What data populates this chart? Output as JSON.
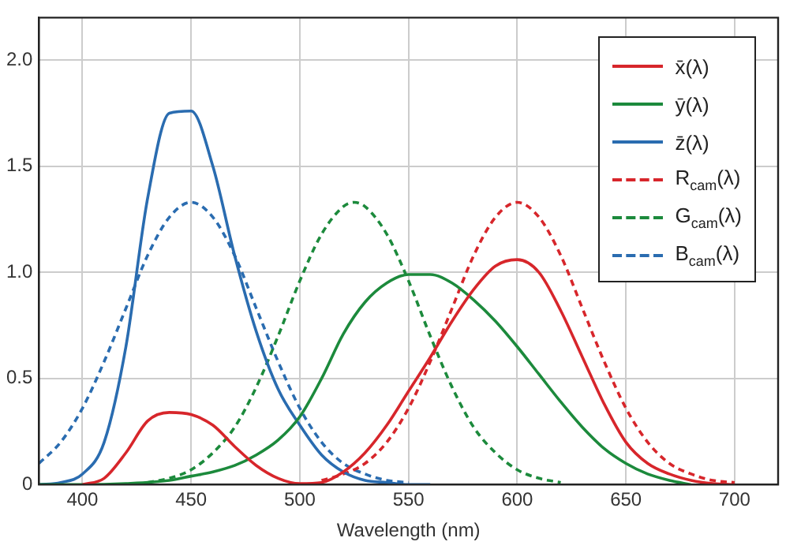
{
  "chart_data": {
    "type": "line",
    "xlabel": "Wavelength (nm)",
    "xlim": [
      380,
      720
    ],
    "xticks": [
      400,
      450,
      500,
      550,
      600,
      650,
      700
    ],
    "ylim": [
      0,
      2.2
    ],
    "yticks": [
      {
        "value": 0,
        "label": "0"
      },
      {
        "value": 0.5,
        "label": "0.5"
      },
      {
        "value": 1,
        "label": "1.0"
      },
      {
        "value": 1.5,
        "label": "1.5"
      },
      {
        "value": 2,
        "label": "2.0"
      }
    ],
    "grid": true,
    "legend": "top right",
    "marker": "none",
    "series": [
      {
        "name": "x̄(λ)",
        "color": "#d7262b",
        "line_style": "solid",
        "x": [
          400,
          410,
          420,
          430,
          440,
          450,
          460,
          470,
          480,
          490,
          500,
          510,
          520,
          530,
          540,
          550,
          560,
          570,
          580,
          590,
          600,
          610,
          620,
          630,
          640,
          650,
          660,
          670,
          680,
          690,
          700
        ],
        "values": [
          0,
          0.03,
          0.15,
          0.3,
          0.34,
          0.33,
          0.28,
          0.18,
          0.09,
          0.03,
          0.005,
          0.01,
          0.06,
          0.15,
          0.28,
          0.44,
          0.6,
          0.77,
          0.92,
          1.03,
          1.06,
          1.0,
          0.82,
          0.6,
          0.38,
          0.2,
          0.1,
          0.05,
          0.02,
          0.005,
          0
        ]
      },
      {
        "name": "ȳ(λ)",
        "color": "#1c8a3c",
        "line_style": "solid",
        "x": [
          380,
          400,
          420,
          440,
          450,
          460,
          470,
          480,
          490,
          500,
          510,
          520,
          530,
          540,
          550,
          560,
          570,
          580,
          590,
          600,
          610,
          620,
          630,
          640,
          650,
          660,
          670,
          680
        ],
        "values": [
          0,
          0,
          0.005,
          0.02,
          0.04,
          0.06,
          0.09,
          0.14,
          0.21,
          0.32,
          0.5,
          0.71,
          0.86,
          0.95,
          0.99,
          0.99,
          0.95,
          0.87,
          0.77,
          0.65,
          0.52,
          0.39,
          0.27,
          0.17,
          0.1,
          0.05,
          0.02,
          0
        ]
      },
      {
        "name": "z̄(λ)",
        "color": "#2a6cb0",
        "line_style": "solid",
        "x": [
          380,
          390,
          400,
          410,
          420,
          430,
          440,
          450,
          460,
          470,
          480,
          490,
          500,
          510,
          520,
          530,
          540,
          550,
          560
        ],
        "values": [
          0,
          0.01,
          0.05,
          0.2,
          0.65,
          1.35,
          1.75,
          1.76,
          1.5,
          1.08,
          0.72,
          0.45,
          0.28,
          0.14,
          0.06,
          0.02,
          0.01,
          0,
          0
        ]
      },
      {
        "name": "R$_{cam}$(λ)",
        "color": "#d7262b",
        "line_style": "dashed",
        "x": [
          510,
          520,
          530,
          540,
          550,
          560,
          570,
          580,
          590,
          600,
          610,
          620,
          630,
          640,
          650,
          660,
          670,
          680,
          690,
          700
        ],
        "values": [
          0.02,
          0.05,
          0.1,
          0.2,
          0.36,
          0.58,
          0.83,
          1.08,
          1.26,
          1.33,
          1.26,
          1.08,
          0.83,
          0.58,
          0.36,
          0.2,
          0.1,
          0.05,
          0.02,
          0.01
        ]
      },
      {
        "name": "G$_{cam}$(λ)",
        "color": "#1c8a3c",
        "line_style": "dashed",
        "x": [
          430,
          440,
          450,
          460,
          470,
          480,
          490,
          500,
          510,
          520,
          525,
          530,
          540,
          550,
          560,
          570,
          580,
          590,
          600,
          610,
          620
        ],
        "values": [
          0.01,
          0.03,
          0.07,
          0.15,
          0.27,
          0.46,
          0.7,
          0.96,
          1.18,
          1.31,
          1.33,
          1.31,
          1.18,
          0.96,
          0.7,
          0.46,
          0.27,
          0.15,
          0.07,
          0.03,
          0.01
        ]
      },
      {
        "name": "B$_{cam}$(λ)",
        "color": "#2a6cb0",
        "line_style": "dashed",
        "x": [
          380,
          390,
          400,
          410,
          420,
          430,
          440,
          450,
          460,
          470,
          480,
          490,
          500,
          510,
          520,
          530,
          540,
          550
        ],
        "values": [
          0.1,
          0.2,
          0.36,
          0.58,
          0.83,
          1.08,
          1.26,
          1.33,
          1.26,
          1.08,
          0.83,
          0.58,
          0.36,
          0.2,
          0.1,
          0.05,
          0.02,
          0.01
        ]
      }
    ]
  }
}
